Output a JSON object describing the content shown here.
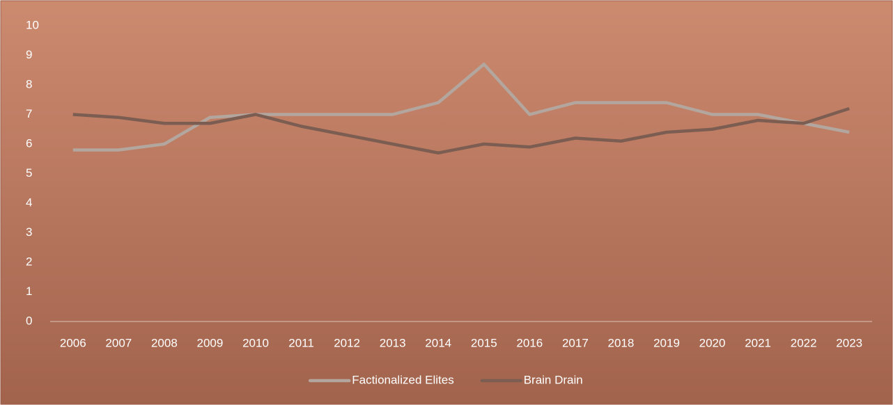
{
  "chart_data": {
    "type": "line",
    "categories": [
      "2006",
      "2007",
      "2008",
      "2009",
      "2010",
      "2011",
      "2012",
      "2013",
      "2014",
      "2015",
      "2016",
      "2017",
      "2018",
      "2019",
      "2020",
      "2021",
      "2022",
      "2023"
    ],
    "series": [
      {
        "name": "Factionalized Elites",
        "color": "#b3a69e",
        "values": [
          5.8,
          5.8,
          6.0,
          6.9,
          7.0,
          7.0,
          7.0,
          7.0,
          7.4,
          8.7,
          7.0,
          7.4,
          7.4,
          7.4,
          7.0,
          7.0,
          6.7,
          6.4
        ]
      },
      {
        "name": "Brain Drain",
        "color": "#7b5d52",
        "values": [
          7.0,
          6.9,
          6.7,
          6.7,
          7.0,
          6.6,
          6.3,
          6.0,
          5.7,
          6.0,
          5.9,
          6.2,
          6.1,
          6.4,
          6.5,
          6.8,
          6.7,
          7.2
        ]
      }
    ],
    "ylim": [
      0,
      10
    ],
    "yticks": [
      0,
      1,
      2,
      3,
      4,
      5,
      6,
      7,
      8,
      9,
      10
    ],
    "grid": false,
    "legend": "bottom"
  }
}
